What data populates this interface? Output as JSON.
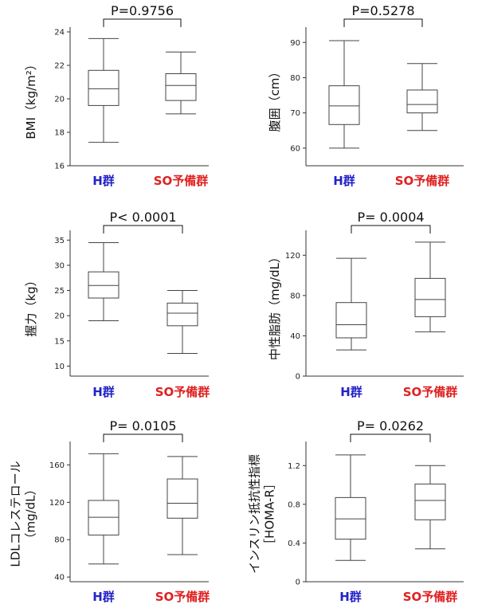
{
  "colors": {
    "h_group": "#2323c8",
    "so_group": "#e02020",
    "stroke": "#444444"
  },
  "chart_data": [
    {
      "type": "box",
      "ylabel_lines": [
        "BMI（kg/m²）"
      ],
      "categories": [
        "H群",
        "SO予備群"
      ],
      "category_colors": [
        "#2323c8",
        "#e02020"
      ],
      "yticks": [
        16,
        18,
        20,
        22,
        24
      ],
      "ylim": [
        16,
        24
      ],
      "pvalue": "P=0.9756",
      "boxes": [
        {
          "min": 17.4,
          "q1": 19.6,
          "median": 20.6,
          "q3": 21.7,
          "max": 23.6
        },
        {
          "min": 19.1,
          "q1": 19.9,
          "median": 20.8,
          "q3": 21.5,
          "max": 22.8
        }
      ]
    },
    {
      "type": "box",
      "ylabel_lines": [
        "腹囲（cm）"
      ],
      "categories": [
        "H群",
        "SO予備群"
      ],
      "category_colors": [
        "#2323c8",
        "#e02020"
      ],
      "yticks": [
        60,
        70,
        80,
        90
      ],
      "ylim": [
        55,
        93
      ],
      "pvalue": "P=0.5278",
      "boxes": [
        {
          "min": 60,
          "q1": 66.7,
          "median": 72,
          "q3": 77.7,
          "max": 90.5
        },
        {
          "min": 65,
          "q1": 70,
          "median": 72.4,
          "q3": 76.5,
          "max": 84
        }
      ]
    },
    {
      "type": "box",
      "ylabel_lines": [
        "握力（kg）"
      ],
      "categories": [
        "H群",
        "SO予備群"
      ],
      "category_colors": [
        "#2323c8",
        "#e02020"
      ],
      "yticks": [
        10,
        15,
        20,
        25,
        30,
        35
      ],
      "ylim": [
        8,
        36
      ],
      "pvalue": "P< 0.0001",
      "boxes": [
        {
          "min": 19,
          "q1": 23.5,
          "median": 26,
          "q3": 28.7,
          "max": 34.5
        },
        {
          "min": 12.5,
          "q1": 18,
          "median": 20.5,
          "q3": 22.5,
          "max": 25
        }
      ]
    },
    {
      "type": "box",
      "ylabel_lines": [
        "中性脂肪（mg/dL）"
      ],
      "categories": [
        "H群",
        "SO予備群"
      ],
      "category_colors": [
        "#2323c8",
        "#e02020"
      ],
      "yticks": [
        0,
        40,
        80,
        120
      ],
      "ylim": [
        0,
        140
      ],
      "pvalue": "P= 0.0004",
      "boxes": [
        {
          "min": 26,
          "q1": 38,
          "median": 51,
          "q3": 73,
          "max": 117
        },
        {
          "min": 44,
          "q1": 59,
          "median": 76,
          "q3": 97,
          "max": 133
        }
      ]
    },
    {
      "type": "box",
      "ylabel_lines": [
        "LDLコレステロール",
        "（mg/dL）"
      ],
      "categories": [
        "H群",
        "SO予備群"
      ],
      "category_colors": [
        "#2323c8",
        "#e02020"
      ],
      "yticks": [
        40,
        80,
        120,
        160
      ],
      "ylim": [
        35,
        180
      ],
      "pvalue": "P= 0.0105",
      "boxes": [
        {
          "min": 54,
          "q1": 85,
          "median": 104,
          "q3": 122,
          "max": 172
        },
        {
          "min": 64,
          "q1": 103,
          "median": 119,
          "q3": 145,
          "max": 169
        }
      ]
    },
    {
      "type": "box",
      "ylabel_lines": [
        "インスリン抵抗性指標",
        "［HOMA-R］"
      ],
      "categories": [
        "H群",
        "SO予備群"
      ],
      "category_colors": [
        "#2323c8",
        "#e02020"
      ],
      "yticks": [
        0,
        0.4,
        0.8,
        1.2
      ],
      "ylim": [
        0,
        1.4
      ],
      "pvalue": "P= 0.0262",
      "boxes": [
        {
          "min": 0.22,
          "q1": 0.44,
          "median": 0.65,
          "q3": 0.87,
          "max": 1.31
        },
        {
          "min": 0.34,
          "q1": 0.64,
          "median": 0.84,
          "q3": 1.01,
          "max": 1.2
        }
      ]
    }
  ]
}
